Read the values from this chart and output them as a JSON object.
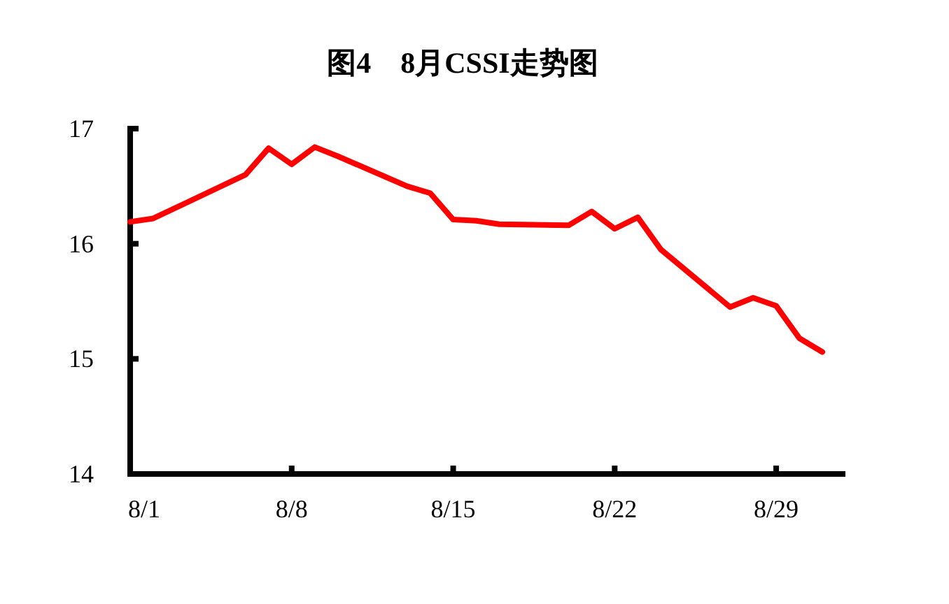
{
  "chart_data": {
    "type": "line",
    "title": "图4　8月CSSI走势图",
    "x": [
      "--08-01",
      "--08-02",
      "--08-06",
      "--08-07",
      "--08-08",
      "--08-09",
      "--08-10",
      "--08-13",
      "--08-14",
      "--08-15",
      "--08-16",
      "--08-17",
      "--08-20",
      "--08-21",
      "--08-22",
      "--08-23",
      "--08-24",
      "--08-27",
      "--08-28",
      "--08-29",
      "--08-30",
      "--08-31"
    ],
    "series": [
      {
        "color": "#ff0000",
        "values": [
          16.19,
          16.22,
          16.6,
          16.83,
          16.69,
          16.84,
          16.76,
          16.5,
          16.44,
          16.21,
          16.2,
          16.17,
          16.16,
          16.28,
          16.13,
          16.23,
          15.95,
          15.45,
          15.53,
          15.46,
          15.18,
          15.06
        ]
      }
    ],
    "xlim": [
      "--08-01",
      "--09-01"
    ],
    "xticks": [
      {
        "value": "--08-01",
        "label": "8/1"
      },
      {
        "value": "--08-08",
        "label": "8/8"
      },
      {
        "value": "--08-15",
        "label": "8/15"
      },
      {
        "value": "--08-22",
        "label": "8/22"
      },
      {
        "value": "--08-29",
        "label": "8/29"
      }
    ],
    "ylim": [
      14,
      17
    ],
    "yticks": [
      14,
      15,
      16,
      17
    ],
    "grid": false,
    "marker": "none",
    "line_style": "solid"
  }
}
